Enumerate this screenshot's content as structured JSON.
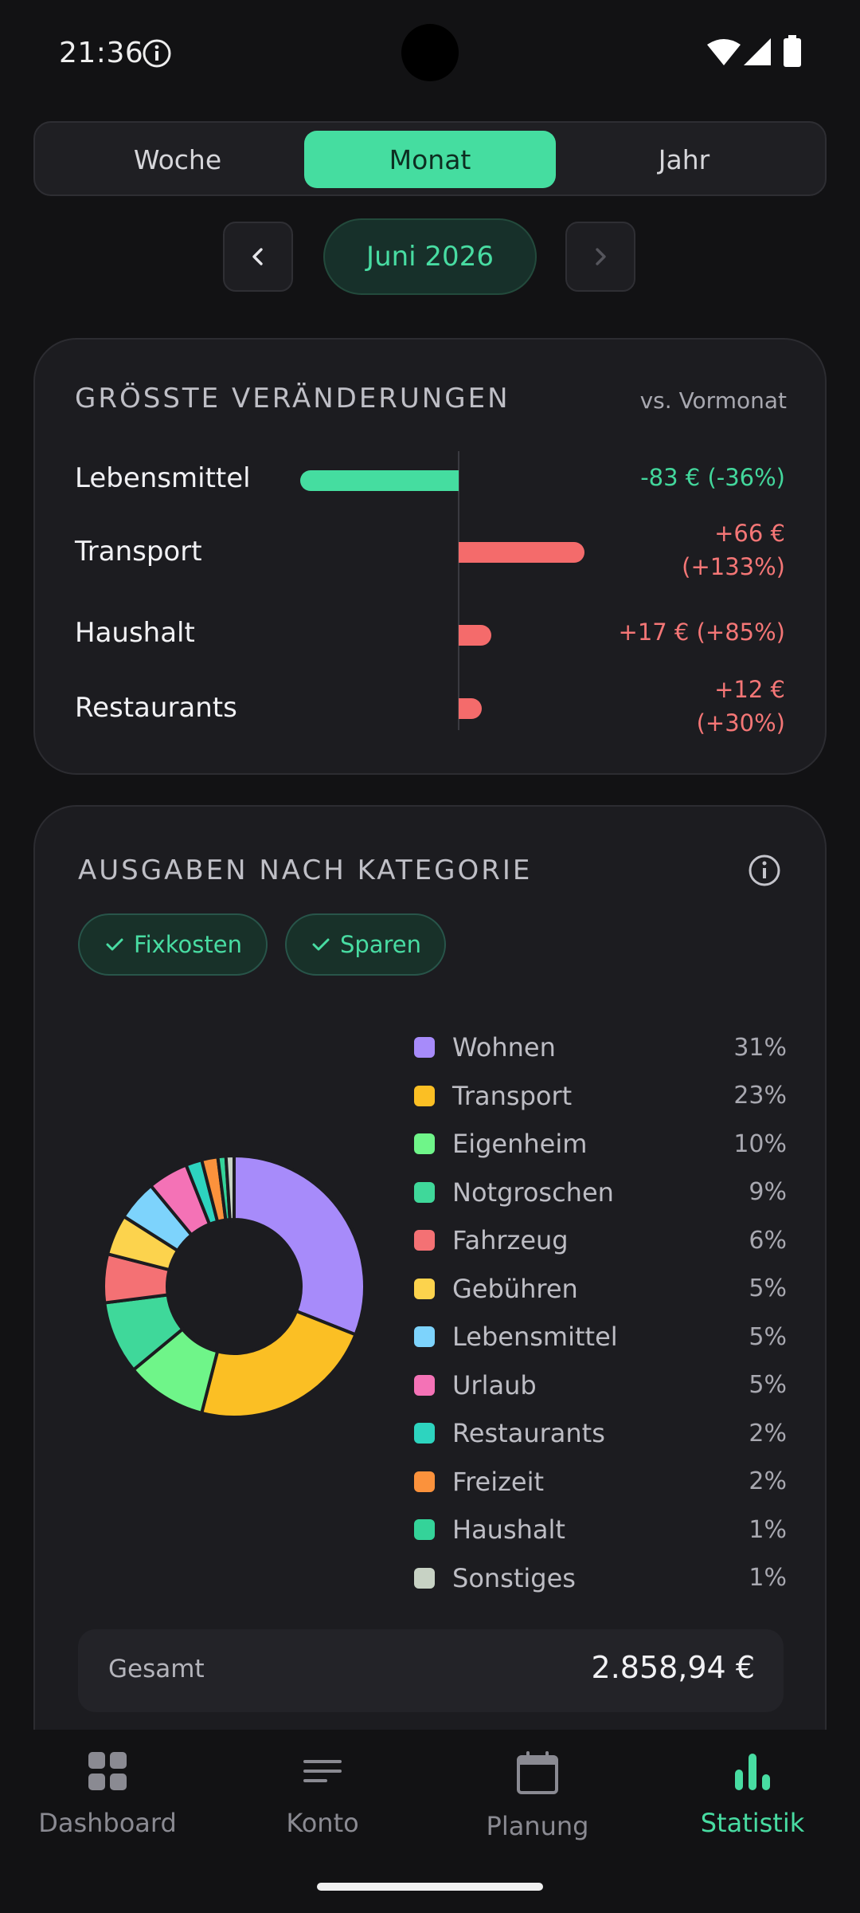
{
  "status": {
    "time": "21:36"
  },
  "period_tabs": [
    {
      "label": "Woche",
      "active": false
    },
    {
      "label": "Monat",
      "active": true
    },
    {
      "label": "Jahr",
      "active": false
    }
  ],
  "month": {
    "label": "Juni 2026"
  },
  "changes_card": {
    "title": "GRÖSSTE VERÄNDERUNGEN",
    "subtitle": "vs. Vormonat",
    "rows": [
      {
        "label": "Lebensmittel",
        "value": "-83 € (-36%)",
        "amount": -83,
        "direction": "neg"
      },
      {
        "label": "Transport",
        "value": "+66 € (+133%)",
        "amount": 66,
        "direction": "pos"
      },
      {
        "label": "Haushalt",
        "value": "+17 € (+85%)",
        "amount": 17,
        "direction": "pos"
      },
      {
        "label": "Restaurants",
        "value": "+12 € (+30%)",
        "amount": 12,
        "direction": "pos"
      }
    ]
  },
  "category_card": {
    "title": "AUSGABEN NACH KATEGORIE",
    "filters": [
      {
        "label": "Fixkosten",
        "checked": true
      },
      {
        "label": "Sparen",
        "checked": true
      }
    ],
    "total_label": "Gesamt",
    "total_value": "2.858,94 €"
  },
  "chart_data": {
    "type": "pie",
    "donut": true,
    "categories": [
      "Wohnen",
      "Transport",
      "Eigenheim",
      "Notgroschen",
      "Fahrzeug",
      "Gebühren",
      "Lebensmittel",
      "Urlaub",
      "Restaurants",
      "Freizeit",
      "Haushalt",
      "Sonstiges"
    ],
    "values": [
      31,
      23,
      10,
      9,
      6,
      5,
      5,
      5,
      2,
      2,
      1,
      1
    ],
    "labels": [
      "31%",
      "23%",
      "10%",
      "9%",
      "6%",
      "5%",
      "5%",
      "5%",
      "2%",
      "2%",
      "1%",
      "1%"
    ],
    "colors": [
      "#a78bfa",
      "#fbbf24",
      "#6ff589",
      "#3fd89a",
      "#f47174",
      "#fcd34d",
      "#7dd3fc",
      "#f472b6",
      "#2dd4bf",
      "#fb923c",
      "#34d399",
      "#c7d2c4"
    ],
    "legend_position": "right"
  },
  "bottom_nav": [
    {
      "label": "Dashboard",
      "icon": "grid-icon",
      "active": false
    },
    {
      "label": "Konto",
      "icon": "lines-icon",
      "active": false
    },
    {
      "label": "Planung",
      "icon": "calendar-icon",
      "active": false
    },
    {
      "label": "Statistik",
      "icon": "bar-chart-icon",
      "active": true
    }
  ]
}
